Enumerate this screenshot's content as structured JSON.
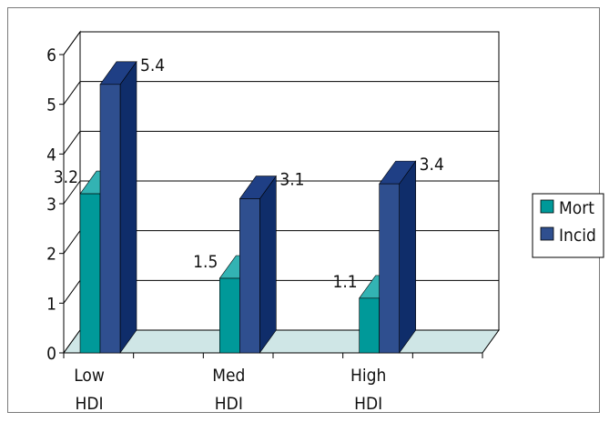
{
  "colors": {
    "mort_front": "#009999",
    "mort_side": "#006b6b",
    "mort_top": "#33b3b3",
    "incid_front": "#2f4f8f",
    "incid_side": "#0f2d6a",
    "incid_top": "#1f3f85",
    "floor": "#cfe6e6",
    "grid": "#000000"
  },
  "chart_data": {
    "type": "bar",
    "bar_style": "3d-clustered",
    "categories": [
      [
        "Low",
        "HDI"
      ],
      [
        "Med",
        "HDI"
      ],
      [
        "High",
        "HDI"
      ]
    ],
    "series": [
      {
        "name": "Mort",
        "values": [
          3.2,
          1.5,
          1.1
        ]
      },
      {
        "name": "Incid",
        "values": [
          5.4,
          3.1,
          3.4
        ]
      }
    ],
    "data_labels": [
      [
        "3.2",
        "1.5",
        "1.1"
      ],
      [
        "5.4",
        "3.1",
        "3.4"
      ]
    ],
    "yticks": [
      "0",
      "1",
      "2",
      "3",
      "4",
      "5",
      "6"
    ],
    "ylim": [
      0,
      6
    ],
    "grid": true,
    "legend_position": "right",
    "title": "",
    "xlabel": "",
    "ylabel": ""
  }
}
